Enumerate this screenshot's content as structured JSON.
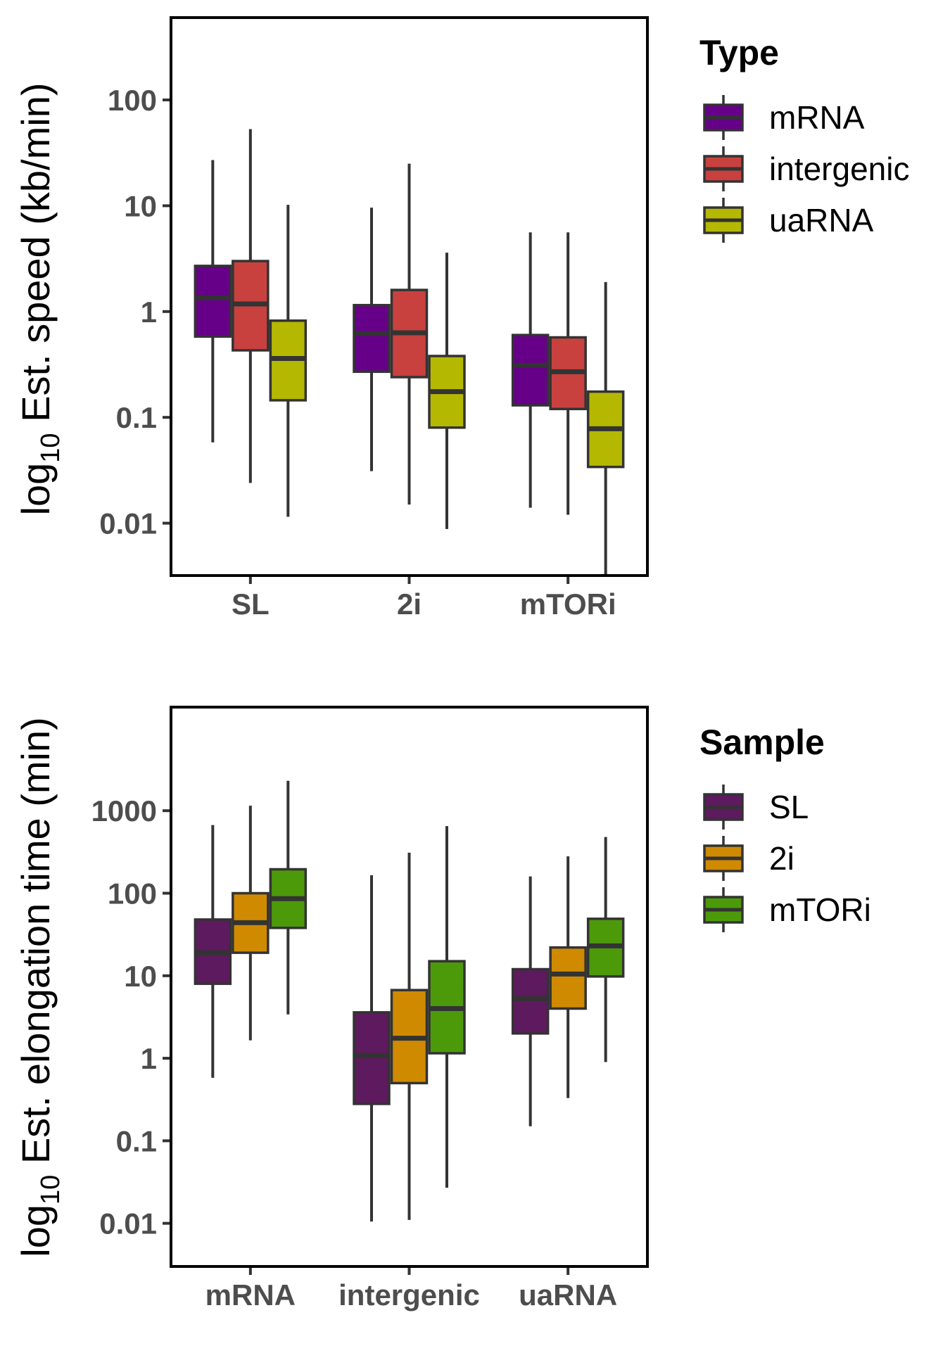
{
  "chart_data": [
    {
      "type": "box",
      "ylabel": {
        "prefix": "log",
        "sub": "10",
        "rest": " Est. speed (kb/min)"
      },
      "y_scale": "log10",
      "ylim": [
        0.0032,
        600
      ],
      "y_ticks": [
        {
          "value": 0.01,
          "label": "0.01"
        },
        {
          "value": 0.1,
          "label": "0.1"
        },
        {
          "value": 1,
          "label": "1"
        },
        {
          "value": 10,
          "label": "10"
        },
        {
          "value": 100,
          "label": "100"
        }
      ],
      "categories": [
        "SL",
        "2i",
        "mTORi"
      ],
      "legend": {
        "title": "Type",
        "placement": "right"
      },
      "series": [
        {
          "name": "mRNA",
          "color": "#660088",
          "boxes": [
            {
              "whisker_low": 0.058,
              "q1": 0.58,
              "median": 1.35,
              "q3": 2.7,
              "whisker_high": 27
            },
            {
              "whisker_low": 0.031,
              "q1": 0.27,
              "median": 0.62,
              "q3": 1.15,
              "whisker_high": 9.6
            },
            {
              "whisker_low": 0.014,
              "q1": 0.13,
              "median": 0.31,
              "q3": 0.6,
              "whisker_high": 5.6
            }
          ]
        },
        {
          "name": "intergenic",
          "color": "#c8413f",
          "boxes": [
            {
              "whisker_low": 0.024,
              "q1": 0.43,
              "median": 1.18,
              "q3": 3.0,
              "whisker_high": 53
            },
            {
              "whisker_low": 0.015,
              "q1": 0.24,
              "median": 0.63,
              "q3": 1.6,
              "whisker_high": 25
            },
            {
              "whisker_low": 0.012,
              "q1": 0.12,
              "median": 0.27,
              "q3": 0.57,
              "whisker_high": 5.6
            }
          ]
        },
        {
          "name": "uaRNA",
          "color": "#b5b800",
          "boxes": [
            {
              "whisker_low": 0.0115,
              "q1": 0.145,
              "median": 0.36,
              "q3": 0.82,
              "whisker_high": 10.2
            },
            {
              "whisker_low": 0.0088,
              "q1": 0.08,
              "median": 0.175,
              "q3": 0.38,
              "whisker_high": 3.6
            },
            {
              "whisker_low": 0.0033,
              "q1": 0.034,
              "median": 0.078,
              "q3": 0.175,
              "whisker_high": 1.9
            }
          ]
        }
      ]
    },
    {
      "type": "box",
      "ylabel": {
        "prefix": "log",
        "sub": "10",
        "rest": " Est. elongation time (min)"
      },
      "y_scale": "log10",
      "ylim": [
        0.003,
        18000
      ],
      "y_ticks": [
        {
          "value": 0.01,
          "label": "0.01"
        },
        {
          "value": 0.1,
          "label": "0.1"
        },
        {
          "value": 1,
          "label": "1"
        },
        {
          "value": 10,
          "label": "10"
        },
        {
          "value": 100,
          "label": "100"
        },
        {
          "value": 1000,
          "label": "1000"
        }
      ],
      "categories": [
        "mRNA",
        "intergenic",
        "uaRNA"
      ],
      "legend": {
        "title": "Sample",
        "placement": "right"
      },
      "series": [
        {
          "name": "SL",
          "color": "#5e1a5e",
          "boxes": [
            {
              "whisker_low": 0.58,
              "q1": 8.0,
              "median": 19,
              "q3": 48,
              "whisker_high": 670
            },
            {
              "whisker_low": 0.0105,
              "q1": 0.28,
              "median": 1.08,
              "q3": 3.6,
              "whisker_high": 165
            },
            {
              "whisker_low": 0.15,
              "q1": 2.0,
              "median": 5.3,
              "q3": 12,
              "whisker_high": 160
            }
          ]
        },
        {
          "name": "2i",
          "color": "#d08a00",
          "boxes": [
            {
              "whisker_low": 1.65,
              "q1": 19,
              "median": 44,
              "q3": 100,
              "whisker_high": 1150
            },
            {
              "whisker_low": 0.011,
              "q1": 0.5,
              "median": 1.75,
              "q3": 6.7,
              "whisker_high": 310
            },
            {
              "whisker_low": 0.33,
              "q1": 4.0,
              "median": 10.5,
              "q3": 22,
              "whisker_high": 280
            }
          ]
        },
        {
          "name": "mTORi",
          "color": "#4c9a0a",
          "boxes": [
            {
              "whisker_low": 3.4,
              "q1": 38,
              "median": 86,
              "q3": 195,
              "whisker_high": 2300
            },
            {
              "whisker_low": 0.027,
              "q1": 1.15,
              "median": 4.0,
              "q3": 15,
              "whisker_high": 650
            },
            {
              "whisker_low": 0.9,
              "q1": 9.8,
              "median": 23,
              "q3": 49,
              "whisker_high": 480
            }
          ]
        }
      ]
    }
  ]
}
